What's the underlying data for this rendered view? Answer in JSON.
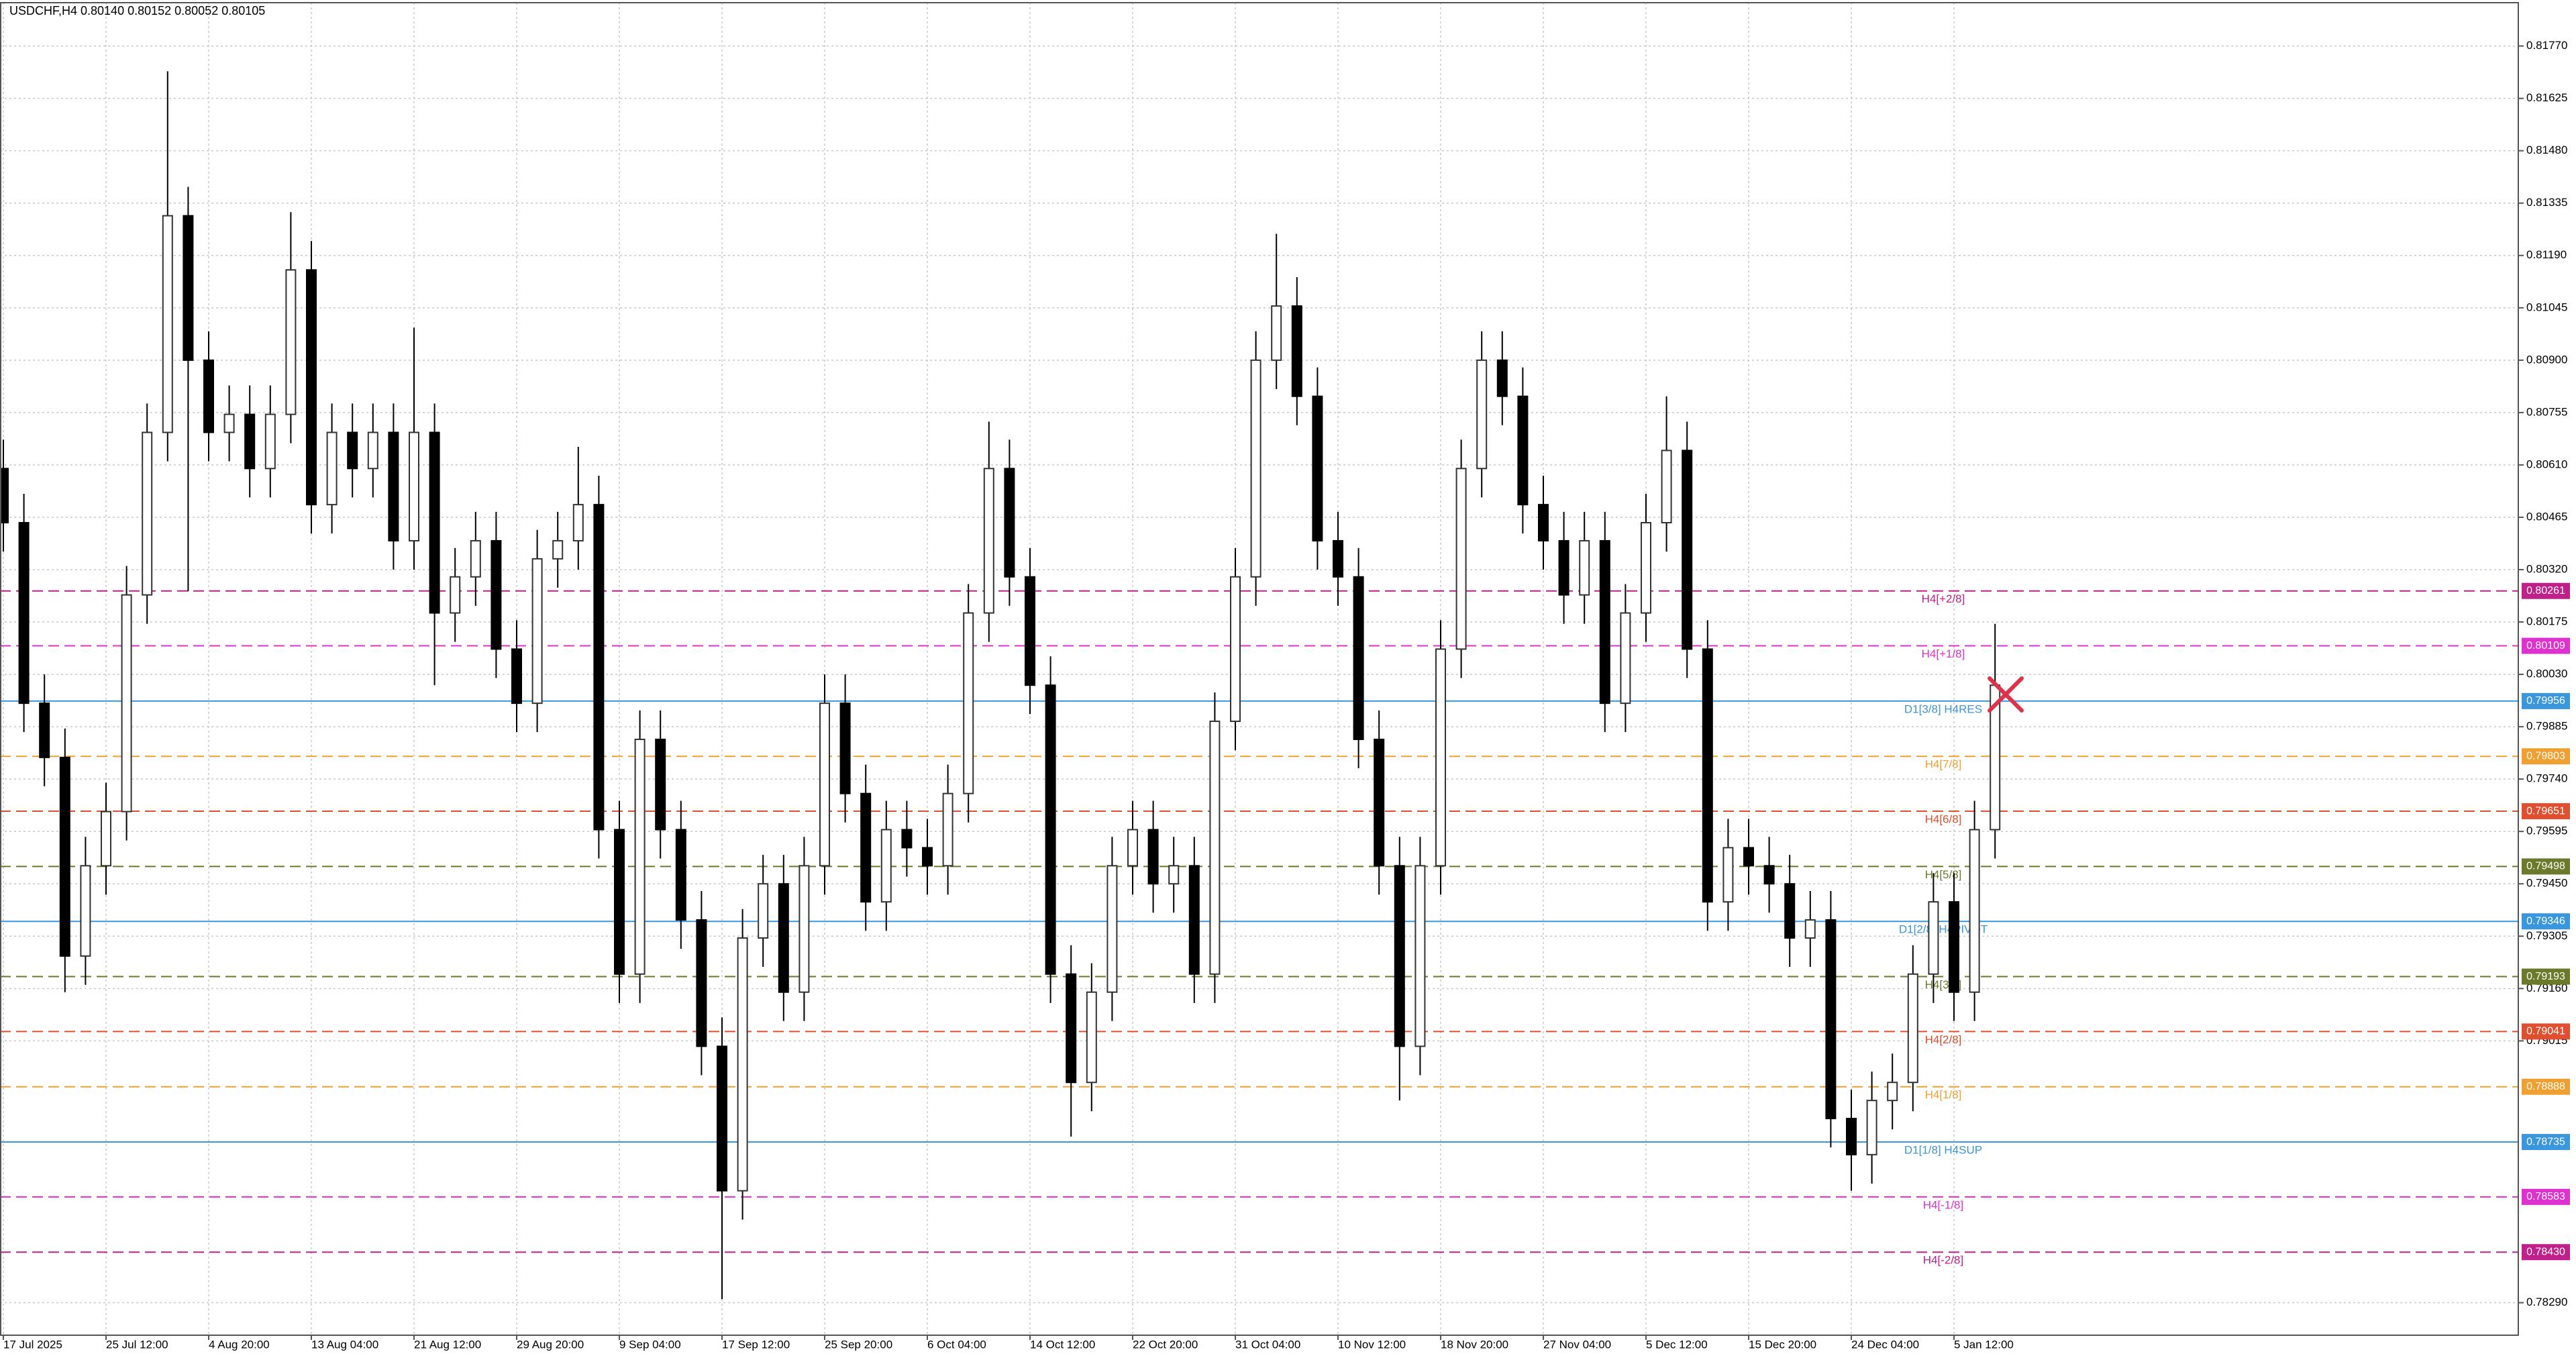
{
  "chart_data": {
    "type": "candlestick",
    "title": "USDCHF,H4  0.80140 0.80152 0.80052 0.80105",
    "categories": [
      "17 Jul 2025",
      null,
      null,
      null,
      null,
      "25 Jul 12:00",
      null,
      null,
      null,
      null,
      "4 Aug 20:00",
      null,
      null,
      null,
      null,
      "13 Aug 04:00",
      null,
      null,
      null,
      null,
      "21 Aug 12:00",
      null,
      null,
      null,
      null,
      "29 Aug 20:00",
      null,
      null,
      null,
      null,
      "9 Sep 04:00",
      null,
      null,
      null,
      null,
      "17 Sep 12:00",
      null,
      null,
      null,
      null,
      "25 Sep 20:00",
      null,
      null,
      null,
      null,
      "6 Oct 04:00",
      null,
      null,
      null,
      null,
      "14 Oct 12:00",
      null,
      null,
      null,
      null,
      "22 Oct 20:00",
      null,
      null,
      null,
      null,
      "31 Oct 04:00",
      null,
      null,
      null,
      null,
      "10 Nov 12:00",
      null,
      null,
      null,
      null,
      "18 Nov 20:00",
      null,
      null,
      null,
      null,
      "27 Nov 04:00",
      null,
      null,
      null,
      null,
      "5 Dec 12:00",
      null,
      null,
      null,
      null,
      "15 Dec 20:00",
      null,
      null,
      null,
      null,
      "24 Dec 04:00",
      null,
      null,
      null,
      null,
      "5 Jan 12:00",
      null,
      null
    ],
    "open": [
      0.806,
      0.8045,
      0.7995,
      0.798,
      0.7925,
      0.795,
      0.7965,
      0.8025,
      0.807,
      0.813,
      0.809,
      0.807,
      0.8075,
      0.806,
      0.8075,
      0.8115,
      0.805,
      0.807,
      0.806,
      0.807,
      0.804,
      0.807,
      0.802,
      0.803,
      0.804,
      0.801,
      0.7995,
      0.8035,
      0.804,
      0.805,
      0.796,
      0.792,
      0.7985,
      0.796,
      0.7935,
      0.79,
      0.786,
      0.793,
      0.7945,
      0.7915,
      0.795,
      0.7995,
      0.797,
      0.794,
      0.796,
      0.7955,
      0.795,
      0.797,
      0.802,
      0.806,
      0.803,
      0.8,
      0.792,
      0.789,
      0.7915,
      0.795,
      0.796,
      0.7945,
      0.795,
      0.792,
      0.799,
      0.803,
      0.809,
      0.8105,
      0.808,
      0.804,
      0.803,
      0.7985,
      0.795,
      0.79,
      0.795,
      0.801,
      0.806,
      0.809,
      0.808,
      0.805,
      0.804,
      0.8025,
      0.804,
      0.7995,
      0.802,
      0.8045,
      0.8065,
      0.801,
      0.794,
      0.7955,
      0.795,
      0.7945,
      0.793,
      0.7935,
      0.788,
      0.787,
      0.7885,
      0.789,
      0.792,
      0.794,
      0.7915,
      0.796
    ],
    "high": [
      0.8068,
      0.8053,
      0.8003,
      0.7988,
      0.7958,
      0.7973,
      0.8033,
      0.8078,
      0.817,
      0.8138,
      0.8098,
      0.8083,
      0.8083,
      0.8083,
      0.8131,
      0.8123,
      0.8078,
      0.8078,
      0.8078,
      0.8078,
      0.8099,
      0.8078,
      0.8038,
      0.8048,
      0.8048,
      0.8018,
      0.8043,
      0.8048,
      0.8066,
      0.8058,
      0.7968,
      0.7993,
      0.7993,
      0.7968,
      0.7943,
      0.7908,
      0.7938,
      0.7953,
      0.7953,
      0.7958,
      0.8003,
      0.8003,
      0.7978,
      0.7968,
      0.7968,
      0.7963,
      0.7978,
      0.8028,
      0.8073,
      0.8068,
      0.8038,
      0.8008,
      0.7928,
      0.7923,
      0.7958,
      0.7968,
      0.7968,
      0.7958,
      0.7958,
      0.7998,
      0.8038,
      0.8098,
      0.8125,
      0.8113,
      0.8088,
      0.8048,
      0.8038,
      0.7993,
      0.7958,
      0.7958,
      0.8018,
      0.8068,
      0.8098,
      0.8098,
      0.8088,
      0.8058,
      0.8048,
      0.8048,
      0.8048,
      0.8028,
      0.8053,
      0.808,
      0.8073,
      0.8018,
      0.7963,
      0.7963,
      0.7958,
      0.7953,
      0.7943,
      0.7943,
      0.7888,
      0.7893,
      0.7898,
      0.7928,
      0.7948,
      0.7948,
      0.7968,
      0.8017
    ],
    "low": [
      0.8037,
      0.7987,
      0.7972,
      0.7915,
      0.7917,
      0.7942,
      0.7957,
      0.8017,
      0.8062,
      0.8026,
      0.8062,
      0.8062,
      0.8052,
      0.8052,
      0.8067,
      0.8042,
      0.8042,
      0.8052,
      0.8052,
      0.8032,
      0.8032,
      0.8,
      0.8012,
      0.8022,
      0.8002,
      0.7987,
      0.7987,
      0.8027,
      0.8032,
      0.7952,
      0.7912,
      0.7912,
      0.7952,
      0.7927,
      0.7892,
      0.783,
      0.7852,
      0.7922,
      0.7907,
      0.7907,
      0.7942,
      0.7962,
      0.7932,
      0.7932,
      0.7947,
      0.7942,
      0.7942,
      0.7962,
      0.8012,
      0.8022,
      0.7992,
      0.7912,
      0.7875,
      0.7882,
      0.7907,
      0.7942,
      0.7937,
      0.7937,
      0.7912,
      0.7912,
      0.7982,
      0.8022,
      0.8082,
      0.8072,
      0.8032,
      0.8022,
      0.7977,
      0.7942,
      0.7885,
      0.7892,
      0.7942,
      0.8002,
      0.8052,
      0.8072,
      0.8042,
      0.8032,
      0.8017,
      0.8017,
      0.7987,
      0.7987,
      0.8012,
      0.8037,
      0.8002,
      0.7932,
      0.7932,
      0.7942,
      0.7937,
      0.7922,
      0.7922,
      0.7872,
      0.786,
      0.7862,
      0.7877,
      0.7882,
      0.7912,
      0.7907,
      0.7907,
      0.7952
    ],
    "close": [
      0.8045,
      0.7995,
      0.798,
      0.7925,
      0.795,
      0.7965,
      0.8025,
      0.807,
      0.813,
      0.809,
      0.807,
      0.8075,
      0.806,
      0.8075,
      0.8115,
      0.805,
      0.807,
      0.806,
      0.807,
      0.804,
      0.807,
      0.802,
      0.803,
      0.804,
      0.801,
      0.7995,
      0.8035,
      0.804,
      0.805,
      0.796,
      0.792,
      0.7985,
      0.796,
      0.7935,
      0.79,
      0.786,
      0.793,
      0.7945,
      0.7915,
      0.795,
      0.7995,
      0.797,
      0.794,
      0.796,
      0.7955,
      0.795,
      0.797,
      0.802,
      0.806,
      0.803,
      0.8,
      0.792,
      0.789,
      0.7915,
      0.795,
      0.796,
      0.7945,
      0.795,
      0.792,
      0.799,
      0.803,
      0.809,
      0.8105,
      0.808,
      0.804,
      0.803,
      0.7985,
      0.795,
      0.79,
      0.795,
      0.801,
      0.806,
      0.809,
      0.808,
      0.805,
      0.804,
      0.8025,
      0.804,
      0.7995,
      0.802,
      0.8045,
      0.8065,
      0.801,
      0.794,
      0.7955,
      0.795,
      0.7945,
      0.793,
      0.7935,
      0.788,
      0.787,
      0.7885,
      0.789,
      0.792,
      0.794,
      0.7915,
      0.796,
      0.8
    ],
    "ylim": [
      0.782,
      0.8189
    ],
    "yticks": [
      {
        "value": 0.8177,
        "label": "0.81770"
      },
      {
        "value": 0.81625,
        "label": "0.81625"
      },
      {
        "value": 0.8148,
        "label": "0.81480"
      },
      {
        "value": 0.81335,
        "label": "0.81335"
      },
      {
        "value": 0.8119,
        "label": "0.81190"
      },
      {
        "value": 0.81045,
        "label": "0.81045"
      },
      {
        "value": 0.809,
        "label": "0.80900"
      },
      {
        "value": 0.80755,
        "label": "0.80755"
      },
      {
        "value": 0.8061,
        "label": "0.80610"
      },
      {
        "value": 0.80465,
        "label": "0.80465"
      },
      {
        "value": 0.8032,
        "label": "0.80320"
      },
      {
        "value": 0.80175,
        "label": "0.80175"
      },
      {
        "value": 0.8003,
        "label": "0.80030"
      },
      {
        "value": 0.79885,
        "label": "0.79885"
      },
      {
        "value": 0.7974,
        "label": "0.79740"
      },
      {
        "value": 0.79595,
        "label": "0.79595"
      },
      {
        "value": 0.7945,
        "label": "0.79450"
      },
      {
        "value": 0.79305,
        "label": "0.79305"
      },
      {
        "value": 0.7916,
        "label": "0.79160"
      },
      {
        "value": 0.79015,
        "label": "0.79015"
      },
      {
        "value": 0.7829,
        "label": "0.78290"
      }
    ],
    "grid": true,
    "levels": [
      {
        "name": "H4[+2/8]",
        "value": 0.80261,
        "color": "#c0208a",
        "dash": true
      },
      {
        "name": "H4[+1/8]",
        "value": 0.80109,
        "color": "#e030d0",
        "dash": true
      },
      {
        "name": "D1[3/8] H4RES",
        "value": 0.79956,
        "color": "#3a96dd",
        "dash": false
      },
      {
        "name": "H4[7/8]",
        "value": 0.79803,
        "color": "#f0a030",
        "dash": true
      },
      {
        "name": "H4[6/8]",
        "value": 0.79651,
        "color": "#e05030",
        "dash": true
      },
      {
        "name": "H4[5/8]",
        "value": 0.79498,
        "color": "#6b7a2a",
        "dash": true
      },
      {
        "name": "D1[2/8] H4PIVOT",
        "value": 0.79346,
        "color": "#3a96dd",
        "dash": false
      },
      {
        "name": "H4[3/8]",
        "value": 0.79193,
        "color": "#6b7a2a",
        "dash": true
      },
      {
        "name": "H4[2/8]",
        "value": 0.79041,
        "color": "#e05030",
        "dash": true
      },
      {
        "name": "H4[1/8]",
        "value": 0.78888,
        "color": "#f0a030",
        "dash": true
      },
      {
        "name": "D1[1/8] H4SUP",
        "value": 0.78735,
        "color": "#3a96dd",
        "dash": false
      },
      {
        "name": "H4[-1/8]",
        "value": 0.78583,
        "color": "#e030d0",
        "dash": true
      },
      {
        "name": "H4[-2/8]",
        "value": 0.7843,
        "value_label": "0.78430",
        "color": "#c0208a",
        "dash": true
      }
    ]
  }
}
